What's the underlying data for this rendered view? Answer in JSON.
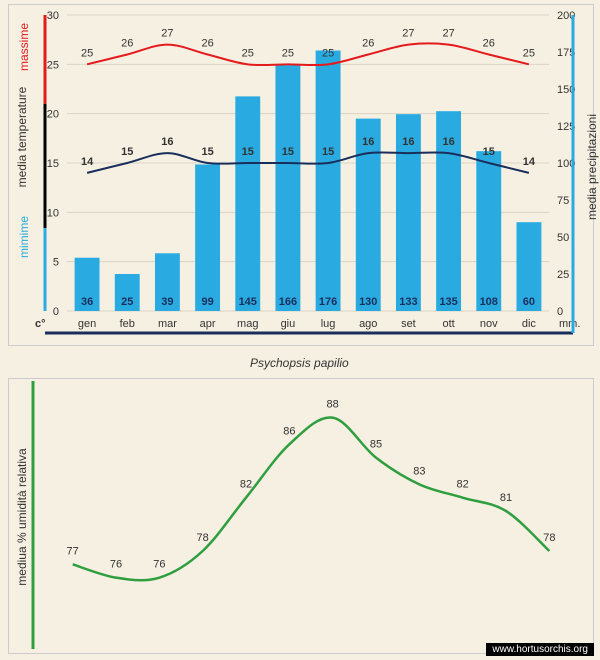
{
  "months": [
    "gen",
    "feb",
    "mar",
    "apr",
    "mag",
    "giu",
    "lug",
    "ago",
    "set",
    "ott",
    "nov",
    "dic"
  ],
  "top_chart": {
    "temp_axis": {
      "min": 0,
      "max": 30,
      "step": 5,
      "label": "media temperature",
      "unit": "c°"
    },
    "precip_axis": {
      "min": 0,
      "max": 200,
      "step": 25,
      "label": "media precipitazioni",
      "unit": "mm."
    },
    "max_temp": {
      "values": [
        25,
        26,
        27,
        26,
        25,
        25,
        25,
        26,
        27,
        27,
        26,
        25
      ],
      "color": "#e41a1c",
      "label": "massime",
      "line_width": 2
    },
    "min_temp": {
      "values": [
        14,
        15,
        16,
        15,
        15,
        15,
        15,
        16,
        16,
        16,
        15,
        14
      ],
      "color": "#1a2e5c",
      "label": "mimime",
      "line_width": 2
    },
    "precip": {
      "values": [
        36,
        25,
        39,
        99,
        145,
        166,
        176,
        130,
        133,
        135,
        108,
        60
      ],
      "color": "#29abe2",
      "bar_width": 0.62
    },
    "grid_color": "#d9d4c5",
    "text_color": "#333",
    "fontsize_axis": 11,
    "fontsize_datalabel": 11
  },
  "species_name": "Psychopsis papilio",
  "bottom_chart": {
    "humidity": {
      "values": [
        77,
        76,
        76,
        78,
        82,
        86,
        88,
        85,
        83,
        82,
        81,
        78
      ],
      "color": "#2e9e3f",
      "label": "mediua % umidità relativa",
      "line_width": 2.5
    },
    "y_axis": {
      "min": 72,
      "max": 90
    },
    "fontsize_datalabel": 11
  },
  "watermark": "www.hortusorchis.org",
  "colors": {
    "bg": "#f5f0e1",
    "border": "#cccccc"
  }
}
